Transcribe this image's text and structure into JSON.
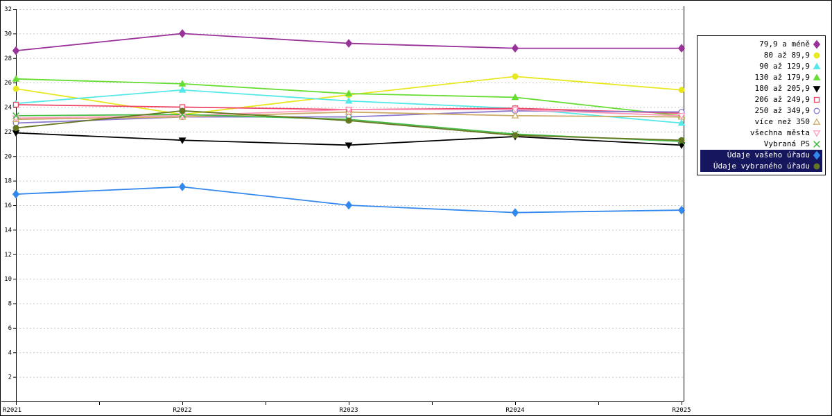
{
  "chart_data": {
    "type": "line",
    "x": [
      "R2021",
      "R2022",
      "R2023",
      "R2024",
      "R2025"
    ],
    "ylim": [
      0,
      32
    ],
    "ytick_step": 2,
    "y_tick_labels": [
      "2",
      "4",
      "6",
      "8",
      "10",
      "12",
      "14",
      "16",
      "18",
      "20",
      "22",
      "24",
      "26",
      "28",
      "30",
      "32"
    ],
    "grid": "horizontal-dashed",
    "grid_color": "#c8c8c8",
    "legend_position": "right",
    "title": "",
    "xlabel": "",
    "ylabel": "",
    "series": [
      {
        "name": "79,9 a méně",
        "color": "#993399",
        "marker": "diamond",
        "filled": true,
        "highlight": false,
        "values": [
          28.6,
          30.0,
          29.2,
          28.8,
          28.8
        ]
      },
      {
        "name": "80 až 89,9",
        "color": "#E8E822",
        "marker": "circle",
        "filled": true,
        "highlight": false,
        "values": [
          25.5,
          23.4,
          25.0,
          26.5,
          25.4
        ]
      },
      {
        "name": "90 až 129,9",
        "color": "#55E8E8",
        "marker": "triangle",
        "filled": true,
        "highlight": false,
        "values": [
          24.3,
          25.4,
          24.5,
          23.9,
          22.7
        ]
      },
      {
        "name": "130 až 179,9",
        "color": "#66DD33",
        "marker": "triangle",
        "filled": true,
        "highlight": false,
        "values": [
          26.3,
          25.9,
          25.1,
          24.8,
          23.3
        ]
      },
      {
        "name": "180 až 205,9",
        "color": "#000000",
        "marker": "triangle-down",
        "filled": true,
        "highlight": false,
        "values": [
          21.9,
          21.3,
          20.9,
          21.6,
          20.9
        ]
      },
      {
        "name": "206 až 249,9",
        "color": "#EE4466",
        "marker": "square",
        "filled": false,
        "highlight": false,
        "values": [
          24.2,
          24.0,
          23.8,
          23.9,
          23.5
        ]
      },
      {
        "name": "250 až 349,9",
        "color": "#8877CC",
        "marker": "circle",
        "filled": false,
        "highlight": false,
        "values": [
          22.7,
          23.2,
          23.2,
          23.7,
          23.6
        ]
      },
      {
        "name": "více než 350",
        "color": "#CCAA66",
        "marker": "triangle",
        "filled": false,
        "highlight": false,
        "values": [
          23.0,
          23.2,
          23.6,
          23.3,
          23.2
        ]
      },
      {
        "name": "všechna města",
        "color": "#FF99BB",
        "marker": "triangle-down",
        "filled": false,
        "highlight": false,
        "values": [
          23.1,
          23.3,
          23.8,
          23.8,
          23.3
        ]
      },
      {
        "name": "Vybraná PS",
        "color": "#44BB44",
        "marker": "x",
        "filled": false,
        "highlight": false,
        "values": [
          23.3,
          23.4,
          23.0,
          21.8,
          21.2
        ]
      },
      {
        "name": "Údaje vašeho úřadu",
        "color": "#3388EE",
        "marker": "diamond",
        "filled": true,
        "highlight": true,
        "values": [
          16.9,
          17.5,
          16.0,
          15.4,
          15.6
        ]
      },
      {
        "name": "Údaje vybraného úřadu",
        "color": "#667722",
        "marker": "circle",
        "filled": true,
        "highlight": true,
        "values": [
          22.3,
          23.7,
          22.9,
          21.7,
          21.3
        ]
      }
    ]
  }
}
